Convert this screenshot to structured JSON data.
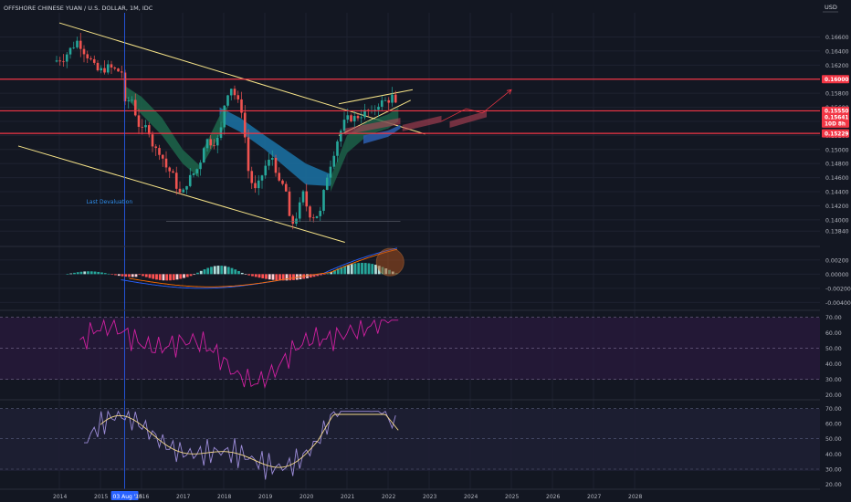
{
  "header": {
    "title": "OFFSHORE CHINESE YUAN / U.S. DOLLAR, 1M, IDC",
    "currency": "USD"
  },
  "colors": {
    "bg": "#131722",
    "grid": "#1e2230",
    "text": "#b2b5be",
    "up": "#26a69a",
    "down": "#ef5350",
    "resistance": "#f23645",
    "channel": "#f7e488",
    "ribbon_bull": "#1e6b4d",
    "ribbon_bear": "#1b6e9e",
    "rsi_line": "#d020a0",
    "rsi_band": "#2a1a3e",
    "stoch_k": "#9c8cd8",
    "stoch_d": "#f5d98a",
    "stoch_band": "#1e1f33",
    "macd_line": "#2962ff",
    "signal_line": "#ff6d00",
    "marker_blue": "#2962ff"
  },
  "chart_data": [
    {
      "type": "candlestick",
      "x_axis": {
        "labels": [
          "2014",
          "2015",
          "03 Aug '15",
          "2016",
          "2017",
          "2018",
          "2019",
          "2020",
          "2021",
          "2022",
          "2023",
          "2024",
          "2025",
          "2026",
          "2027",
          "2028"
        ],
        "values": [
          2014,
          2015,
          2015.59,
          2016,
          2017,
          2018,
          2019,
          2020,
          2021,
          2022,
          2023,
          2024,
          2025,
          2026,
          2027,
          2028
        ],
        "range": [
          2013.0,
          2028.5
        ]
      },
      "y_axis": {
        "ticks": [
          "0.16600",
          "0.16400",
          "0.16200",
          "0.16000",
          "0.15800",
          "0.15600",
          "0.15400",
          "0.15200",
          "0.15000",
          "0.14800",
          "0.14600",
          "0.14400",
          "0.14200",
          "0.14000",
          "0.13840"
        ],
        "range": [
          0.137,
          0.1684
        ]
      },
      "price_labels": [
        "0.16000",
        "0.15550",
        "0.15641",
        "10D 8h",
        "0.15229"
      ],
      "horizontal_levels": [
        0.16,
        0.1555,
        0.15229
      ],
      "annotations": [
        {
          "text": "Last Devaluation",
          "x": 2015.59
        }
      ],
      "close_series": {
        "x": [
          2013.85,
          2014.1,
          2014.3,
          2014.45,
          2014.6,
          2014.75,
          2014.9,
          2015.0,
          2015.2,
          2015.4,
          2015.55,
          2015.6,
          2015.75,
          2015.9,
          2016.0,
          2016.15,
          2016.3,
          2016.45,
          2016.6,
          2016.75,
          2016.9,
          2016.98,
          2017.1,
          2017.25,
          2017.4,
          2017.55,
          2017.7,
          2017.9,
          2018.05,
          2018.2,
          2018.3,
          2018.45,
          2018.6,
          2018.75,
          2018.85,
          2019.0,
          2019.2,
          2019.35,
          2019.5,
          2019.6,
          2019.7,
          2019.8,
          2019.95,
          2020.05,
          2020.2,
          2020.35,
          2020.5,
          2020.65,
          2020.8,
          2020.95,
          2021.05,
          2021.2,
          2021.35,
          2021.5,
          2021.6,
          2021.75,
          2021.9,
          2022.0,
          2022.1,
          2022.2,
          2022.25
        ],
        "close": [
          0.1625,
          0.163,
          0.1645,
          0.1655,
          0.164,
          0.1628,
          0.1612,
          0.1612,
          0.1617,
          0.1612,
          0.161,
          0.1563,
          0.1575,
          0.154,
          0.1525,
          0.1535,
          0.15,
          0.1498,
          0.1475,
          0.1465,
          0.144,
          0.1433,
          0.1453,
          0.1465,
          0.1476,
          0.1515,
          0.151,
          0.1515,
          0.1578,
          0.159,
          0.1572,
          0.1555,
          0.147,
          0.144,
          0.145,
          0.1475,
          0.149,
          0.145,
          0.1448,
          0.14,
          0.1395,
          0.141,
          0.144,
          0.141,
          0.1405,
          0.141,
          0.146,
          0.149,
          0.152,
          0.154,
          0.1545,
          0.1545,
          0.155,
          0.1555,
          0.155,
          0.1565,
          0.1568,
          0.157,
          0.1575,
          0.156,
          0.1564
        ]
      }
    },
    {
      "type": "bar",
      "name": "MACD",
      "y_axis": {
        "ticks": [
          "0.00200",
          "0.00000",
          "-0.00200",
          "-0.00400"
        ],
        "range": [
          -0.0046,
          0.0034
        ]
      }
    },
    {
      "type": "line",
      "name": "RSI",
      "y_axis": {
        "ticks": [
          "70.00",
          "60.00",
          "50.00",
          "40.00",
          "30.00",
          "20.00"
        ],
        "range": [
          18,
          72
        ]
      },
      "bands": [
        70,
        50,
        30
      ]
    },
    {
      "type": "line",
      "name": "Stochastic",
      "y_axis": {
        "ticks": [
          "70.00",
          "60.00",
          "50.00",
          "40.00",
          "30.00",
          "20.00"
        ],
        "range": [
          18,
          72
        ]
      },
      "bands": [
        70,
        50,
        30
      ]
    }
  ]
}
